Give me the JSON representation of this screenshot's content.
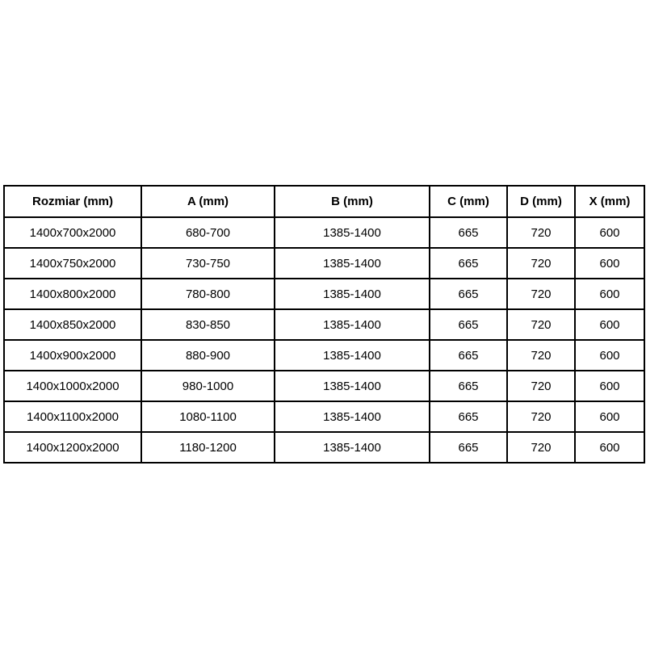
{
  "page": {
    "background_color": "#ffffff"
  },
  "table": {
    "border_color": "#000000",
    "text_color": "#000000",
    "headers": [
      "Rozmiar (mm)",
      "A (mm)",
      "B (mm)",
      "C (mm)",
      "D (mm)",
      "X (mm)"
    ],
    "rows": [
      [
        "1400x700x2000",
        "680-700",
        "1385-1400",
        "665",
        "720",
        "600"
      ],
      [
        "1400x750x2000",
        "730-750",
        "1385-1400",
        "665",
        "720",
        "600"
      ],
      [
        "1400x800x2000",
        "780-800",
        "1385-1400",
        "665",
        "720",
        "600"
      ],
      [
        "1400x850x2000",
        "830-850",
        "1385-1400",
        "665",
        "720",
        "600"
      ],
      [
        "1400x900x2000",
        "880-900",
        "1385-1400",
        "665",
        "720",
        "600"
      ],
      [
        "1400x1000x2000",
        "980-1000",
        "1385-1400",
        "665",
        "720",
        "600"
      ],
      [
        "1400x1100x2000",
        "1080-1100",
        "1385-1400",
        "665",
        "720",
        "600"
      ],
      [
        "1400x1200x2000",
        "1180-1200",
        "1385-1400",
        "665",
        "720",
        "600"
      ]
    ]
  },
  "chart_data": {
    "type": "table",
    "columns": [
      "Rozmiar (mm)",
      "A (mm)",
      "B (mm)",
      "C (mm)",
      "D (mm)",
      "X (mm)"
    ],
    "rows": [
      [
        "1400x700x2000",
        "680-700",
        "1385-1400",
        "665",
        "720",
        "600"
      ],
      [
        "1400x750x2000",
        "730-750",
        "1385-1400",
        "665",
        "720",
        "600"
      ],
      [
        "1400x800x2000",
        "780-800",
        "1385-1400",
        "665",
        "720",
        "600"
      ],
      [
        "1400x850x2000",
        "830-850",
        "1385-1400",
        "665",
        "720",
        "600"
      ],
      [
        "1400x900x2000",
        "880-900",
        "1385-1400",
        "665",
        "720",
        "600"
      ],
      [
        "1400x1000x2000",
        "980-1000",
        "1385-1400",
        "665",
        "720",
        "600"
      ],
      [
        "1400x1100x2000",
        "1080-1100",
        "1385-1400",
        "665",
        "720",
        "600"
      ],
      [
        "1400x1200x2000",
        "1180-1200",
        "1385-1400",
        "665",
        "720",
        "600"
      ]
    ]
  }
}
